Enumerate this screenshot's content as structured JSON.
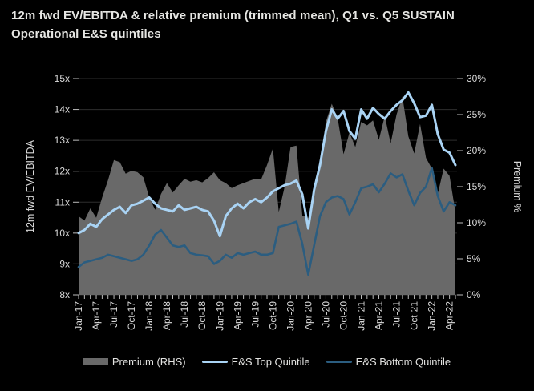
{
  "title": "12m fwd EV/EBITDA & relative premium (trimmed mean), Q1 vs. Q5 SUSTAIN\nOperational E&S quintiles",
  "colors": {
    "background": "#000000",
    "title_text": "#e6e6e3",
    "axis_text": "#d9d9d9",
    "gridline": "#2e2e2e",
    "tick_mark": "#bdbdbd",
    "premium_area": "#696969",
    "top_quintile": "#a9d3f4",
    "bottom_quintile": "#2b5d80"
  },
  "chart_data": {
    "type": "area+line",
    "title": "12m fwd EV/EBITDA & relative premium (trimmed mean), Q1 vs. Q5 SUSTAIN Operational E&S quintiles",
    "x_frequency": "monthly",
    "x_tick_every": 3,
    "x_tick_labels": [
      "Jan-17",
      "Apr-17",
      "Jul-17",
      "Oct-17",
      "Jan-18",
      "Apr-18",
      "Jul-18",
      "Oct-18",
      "Jan-19",
      "Apr-19",
      "Jul-19",
      "Oct-19",
      "Jan-20",
      "Apr-20",
      "Jul-20",
      "Oct-20",
      "Jan-21",
      "Apr-21",
      "Jul-21",
      "Oct-21",
      "Jan-22",
      "Apr-22"
    ],
    "left_axis": {
      "label": "12m fwd EV/EBITDA",
      "min": 8,
      "max": 15,
      "tick_step": 1,
      "tick_labels": [
        "8x",
        "9x",
        "10x",
        "11x",
        "12x",
        "13x",
        "14x",
        "15x"
      ]
    },
    "right_axis": {
      "label": "Premium %",
      "min": 0,
      "max": 30,
      "tick_step": 5,
      "tick_labels": [
        "0%",
        "5%",
        "10%",
        "15%",
        "20%",
        "25%",
        "30%"
      ]
    },
    "grid": "horizontal-left-axis",
    "legend_position": "bottom-center",
    "series": [
      {
        "name": "Premium (RHS)",
        "type": "area",
        "axis": "right",
        "unit": "%",
        "values": [
          10.9,
          10.3,
          12.0,
          10.7,
          13.5,
          15.9,
          18.7,
          18.4,
          16.8,
          17.2,
          17.0,
          16.3,
          13.5,
          11.8,
          14.0,
          15.5,
          14.2,
          15.2,
          16.1,
          15.7,
          15.9,
          15.6,
          16.2,
          17.0,
          15.9,
          15.5,
          14.8,
          15.2,
          15.5,
          15.8,
          16.1,
          16.0,
          18.0,
          20.3,
          11.5,
          15.0,
          20.5,
          20.7,
          11.0,
          10.7,
          14.0,
          18.0,
          24.0,
          26.5,
          24.5,
          19.5,
          22.5,
          20.5,
          24.0,
          23.5,
          24.2,
          21.5,
          24.8,
          21.0,
          25.0,
          27.5,
          22.0,
          19.6,
          23.7,
          19.0,
          17.5,
          14.0,
          17.5,
          16.5,
          11.5
        ]
      },
      {
        "name": "E&S Top Quintile",
        "type": "line",
        "axis": "left",
        "unit": "x",
        "values": [
          10.0,
          10.1,
          10.3,
          10.2,
          10.45,
          10.6,
          10.75,
          10.85,
          10.65,
          10.9,
          10.95,
          11.05,
          11.15,
          10.95,
          10.8,
          10.75,
          10.7,
          10.9,
          10.75,
          10.8,
          10.85,
          10.75,
          10.7,
          10.4,
          9.9,
          10.55,
          10.8,
          10.95,
          10.8,
          11.0,
          11.1,
          11.0,
          11.15,
          11.35,
          11.45,
          11.55,
          11.6,
          11.7,
          11.25,
          10.15,
          11.4,
          12.2,
          13.3,
          14.0,
          13.7,
          13.95,
          13.3,
          13.05,
          14.0,
          13.7,
          14.05,
          13.85,
          13.7,
          13.95,
          14.15,
          14.3,
          14.55,
          14.2,
          13.75,
          13.8,
          14.15,
          13.2,
          12.7,
          12.6,
          12.2
        ]
      },
      {
        "name": "E&S Bottom Quintile",
        "type": "line",
        "axis": "left",
        "unit": "x",
        "values": [
          8.9,
          9.05,
          9.1,
          9.15,
          9.2,
          9.3,
          9.25,
          9.2,
          9.15,
          9.1,
          9.15,
          9.3,
          9.6,
          9.95,
          10.1,
          9.85,
          9.6,
          9.55,
          9.6,
          9.35,
          9.3,
          9.28,
          9.25,
          9.0,
          9.1,
          9.3,
          9.2,
          9.35,
          9.3,
          9.35,
          9.4,
          9.3,
          9.3,
          9.35,
          10.2,
          10.25,
          10.3,
          10.37,
          9.65,
          8.65,
          9.6,
          10.55,
          11.0,
          11.15,
          11.2,
          11.1,
          10.6,
          11.0,
          11.45,
          11.5,
          11.58,
          11.32,
          11.6,
          11.93,
          11.8,
          11.9,
          11.37,
          10.9,
          11.3,
          11.5,
          12.1,
          11.2,
          10.7,
          11.0,
          10.9
        ]
      }
    ]
  },
  "legend": {
    "items": [
      {
        "label": "Premium (RHS)",
        "swatch": "area",
        "color": "#696969"
      },
      {
        "label": "E&S Top Quintile",
        "swatch": "line",
        "color": "#a9d3f4"
      },
      {
        "label": "E&S Bottom Quintile",
        "swatch": "line",
        "color": "#2b5d80"
      }
    ]
  }
}
